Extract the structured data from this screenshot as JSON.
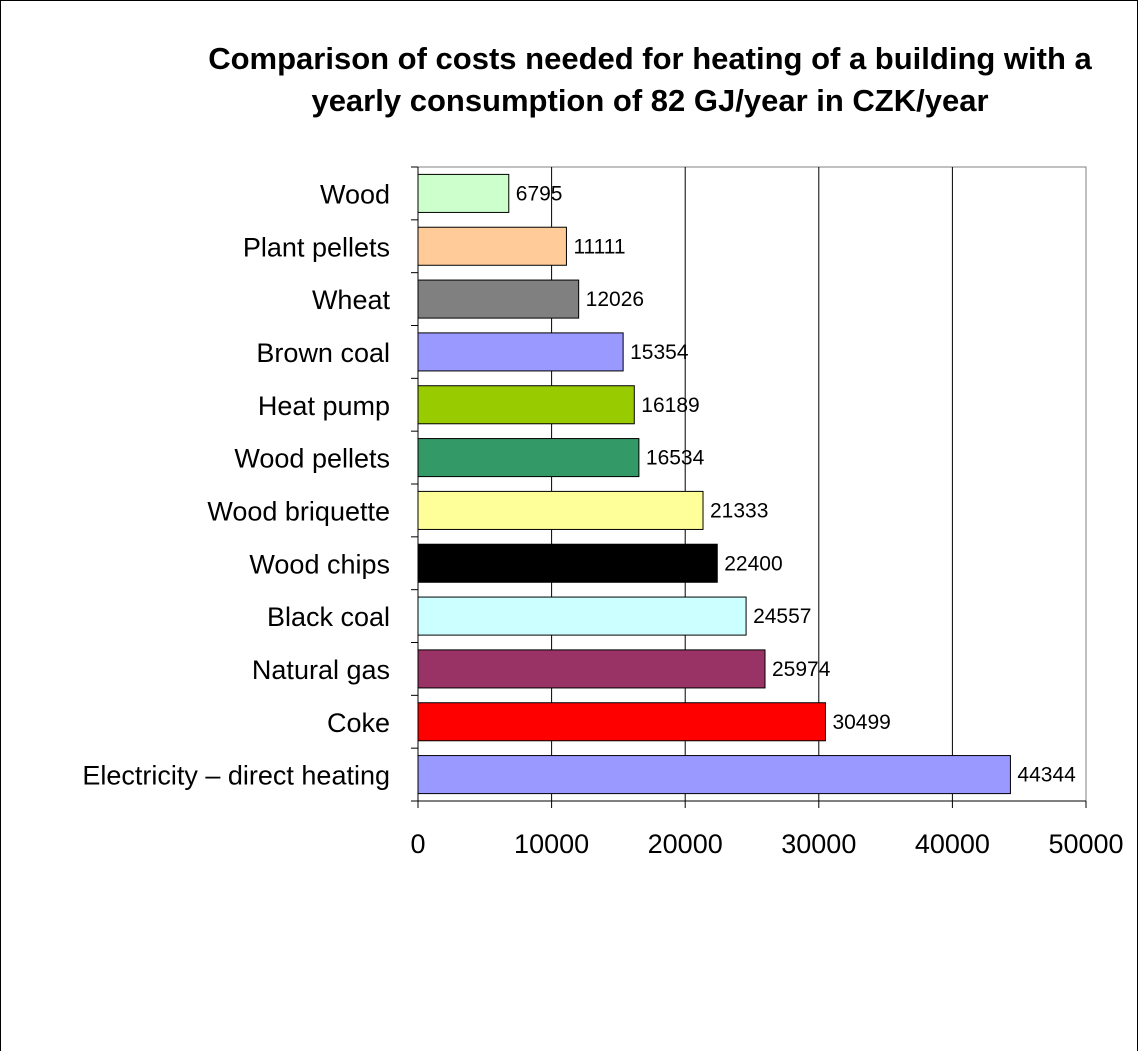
{
  "chart_data": {
    "type": "bar",
    "orientation": "horizontal",
    "title": "Comparison of costs needed for heating of a building with a yearly consumption of 82 GJ/year in CZK/year",
    "xlabel": "",
    "ylabel": "",
    "xlim": [
      0,
      50000
    ],
    "x_ticks": [
      "0",
      "10000",
      "20000",
      "30000",
      "40000",
      "50000"
    ],
    "grid": "vertical",
    "legend": "none",
    "categories": [
      "Wood",
      "Plant pellets",
      "Wheat",
      "Brown coal",
      "Heat pump",
      "Wood pellets",
      "Wood briquette",
      "Wood chips",
      "Black coal",
      "Natural gas",
      "Coke",
      "Electricity – direct heating"
    ],
    "values": [
      6795,
      11111,
      12026,
      15354,
      16189,
      16534,
      21333,
      22400,
      24557,
      25974,
      30499,
      44344
    ],
    "data_labels": [
      "6795",
      "11111",
      "12026",
      "15354",
      "16189",
      "16534",
      "21333",
      "22400",
      "24557",
      "25974",
      "30499",
      "44344"
    ],
    "colors": [
      "#ccffcc",
      "#ffcc99",
      "#808080",
      "#9999ff",
      "#99cc00",
      "#339966",
      "#ffff99",
      "#000000",
      "#ccffff",
      "#993366",
      "#ff0000",
      "#9999ff"
    ]
  }
}
